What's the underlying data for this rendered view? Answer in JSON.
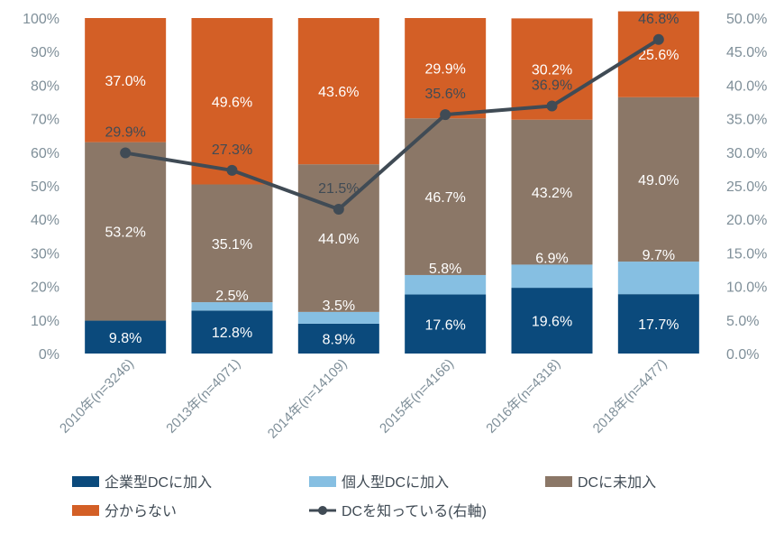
{
  "chart_data": {
    "type": "bar",
    "stacked": true,
    "categories": [
      "2010年(n=3246)",
      "2013年(n=4071)",
      "2014年(n=14109)",
      "2015年(n=4166)",
      "2016年(n=4318)",
      "2018年(n=4477)"
    ],
    "series": [
      {
        "name": "企業型DCに加入",
        "color": "#0b4a7c",
        "values": [
          9.8,
          12.8,
          8.9,
          17.6,
          19.6,
          17.7
        ],
        "labels": [
          "9.8%",
          "12.8%",
          "8.9%",
          "17.6%",
          "19.6%",
          "17.7%"
        ]
      },
      {
        "name": "個人型DCに加入",
        "color": "#86bfe2",
        "values": [
          0,
          2.5,
          3.5,
          5.8,
          6.9,
          9.7
        ],
        "labels": [
          "",
          "2.5%",
          "3.5%",
          "5.8%",
          "6.9%",
          "9.7%"
        ]
      },
      {
        "name": "DCに未加入",
        "color": "#8b7767",
        "values": [
          53.2,
          35.1,
          44.0,
          46.7,
          43.2,
          49.0
        ],
        "labels": [
          "53.2%",
          "35.1%",
          "44.0%",
          "46.7%",
          "43.2%",
          "49.0%"
        ]
      },
      {
        "name": "分からない",
        "color": "#d35f26",
        "values": [
          37.0,
          49.6,
          43.6,
          29.9,
          30.2,
          25.6
        ],
        "labels": [
          "37.0%",
          "49.6%",
          "43.6%",
          "29.9%",
          "30.2%",
          "25.6%"
        ]
      }
    ],
    "line_series": {
      "name": "DCを知っている(右軸)",
      "color": "#404b55",
      "values": [
        29.9,
        27.3,
        21.5,
        35.6,
        36.9,
        46.8
      ],
      "labels": [
        "29.9%",
        "27.3%",
        "21.5%",
        "35.6%",
        "36.9%",
        "46.8%"
      ]
    },
    "y_left": {
      "ylim": [
        0,
        100
      ],
      "ticks": [
        "0%",
        "10%",
        "20%",
        "30%",
        "40%",
        "50%",
        "60%",
        "70%",
        "80%",
        "90%",
        "100%"
      ]
    },
    "y_right": {
      "ylim": [
        0,
        50
      ],
      "ticks": [
        "0.0%",
        "5.0%",
        "10.0%",
        "15.0%",
        "20.0%",
        "25.0%",
        "30.0%",
        "35.0%",
        "40.0%",
        "45.0%",
        "50.0%"
      ]
    },
    "legend_position": "bottom",
    "grid": false
  }
}
